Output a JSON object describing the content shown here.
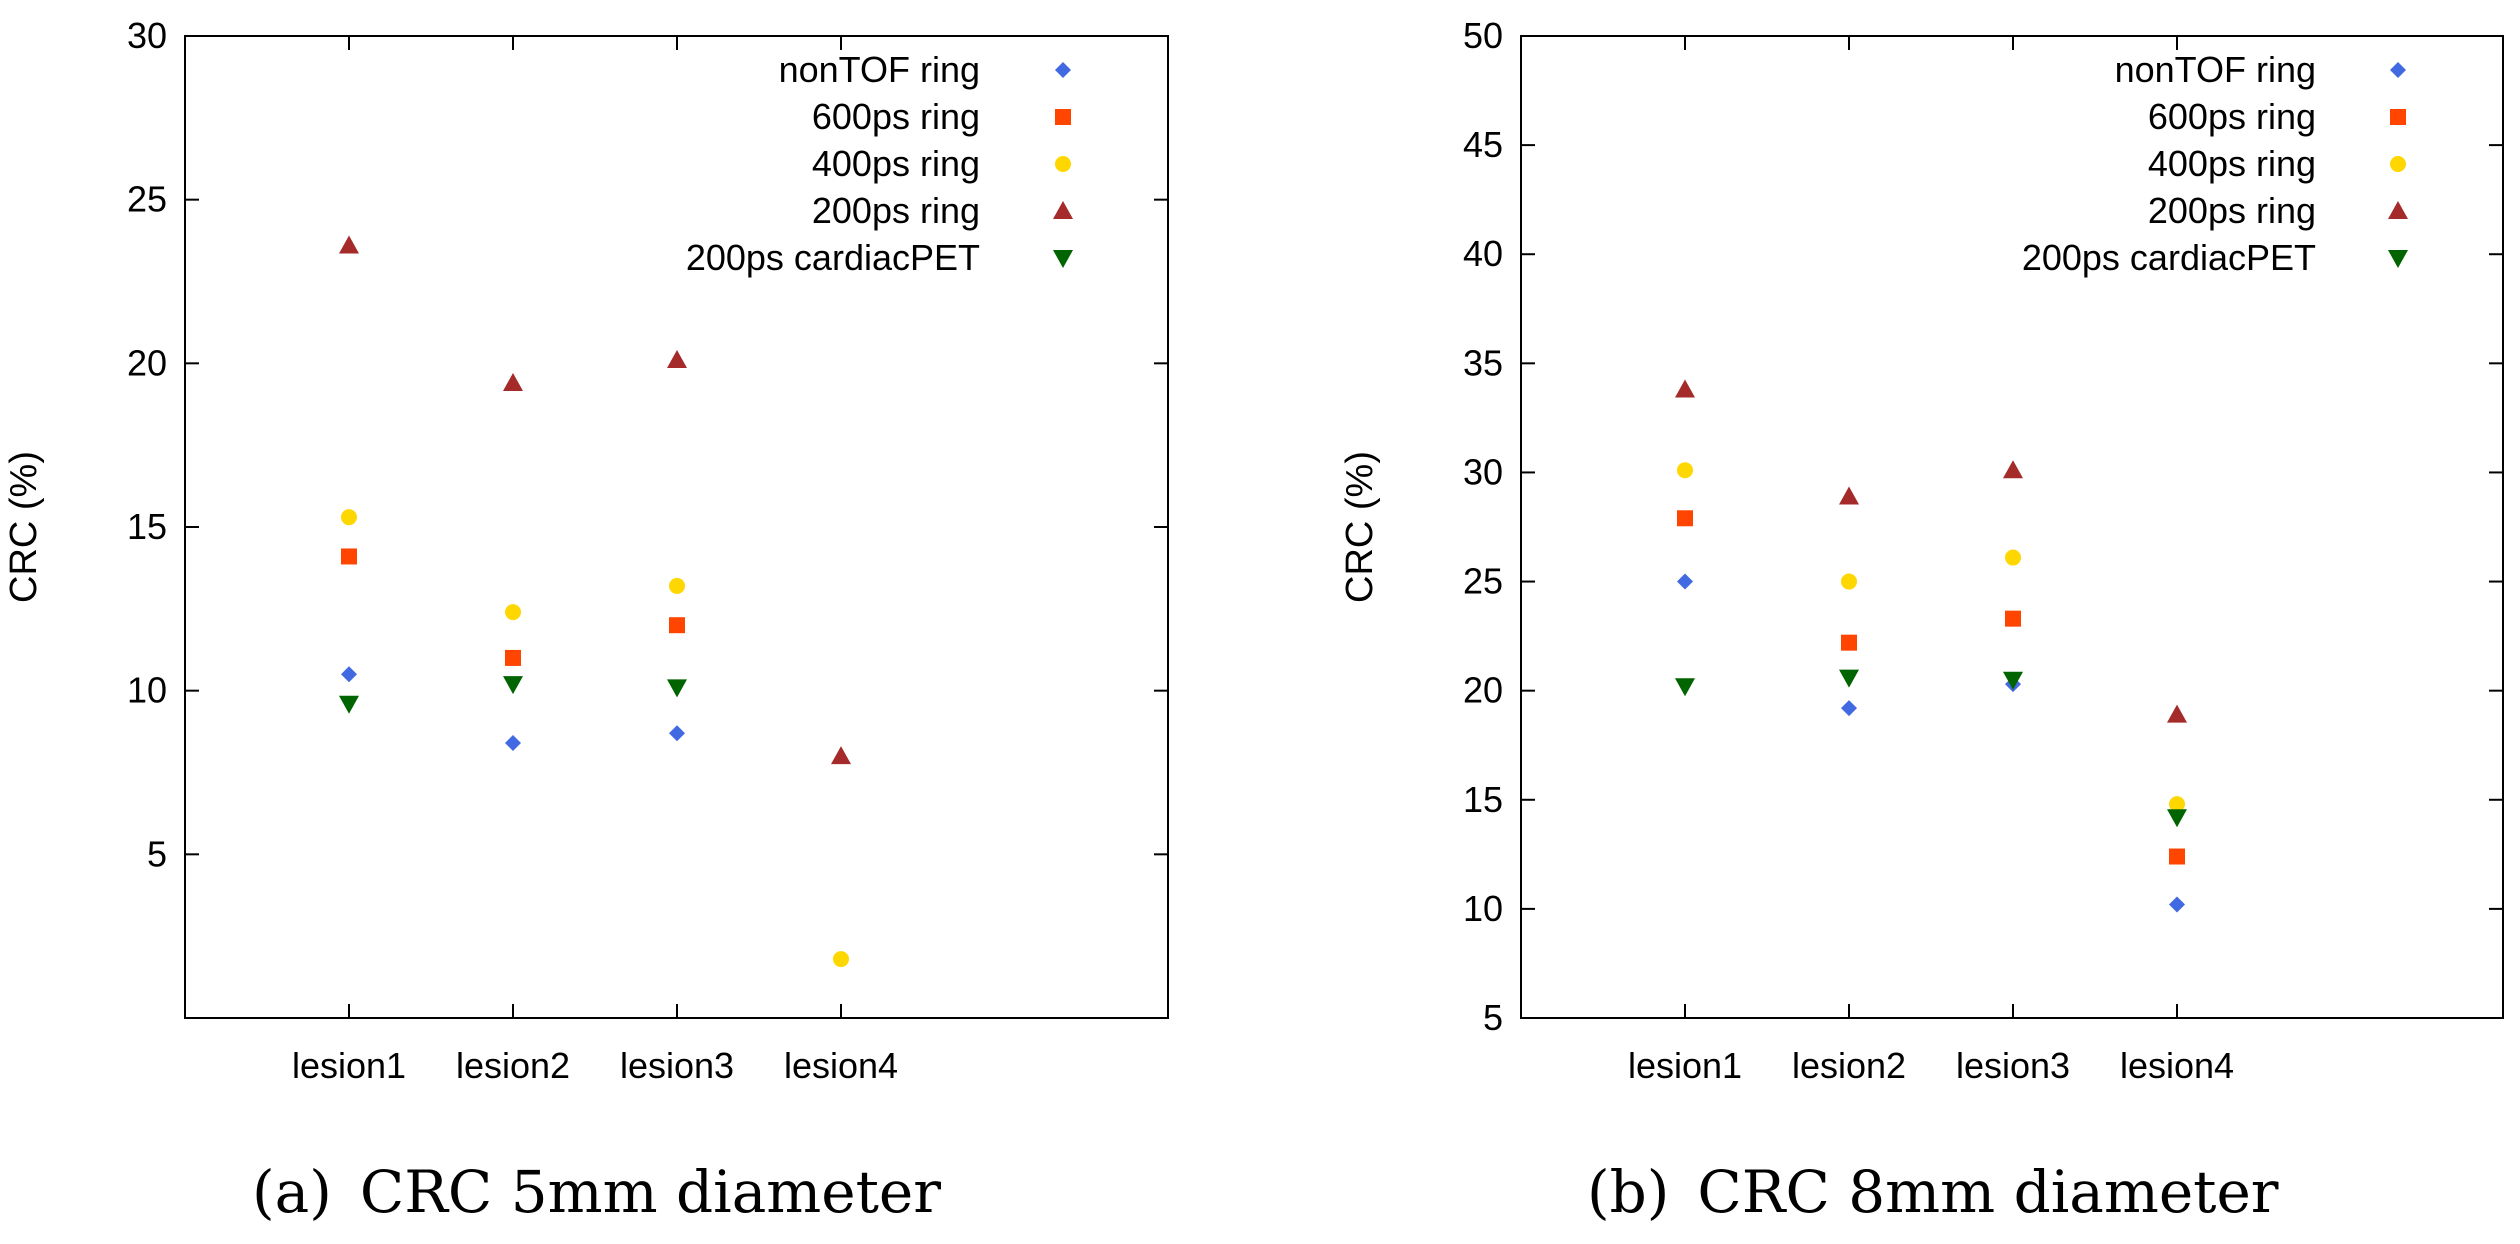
{
  "chart_data": [
    {
      "type": "scatter",
      "caption_label": "(a)",
      "caption_text": "CRC 5mm diameter",
      "ylabel": "CRC (%)",
      "xlabel": "",
      "categories": [
        "lesion1",
        "lesion2",
        "lesion3",
        "lesion4"
      ],
      "ylim": [
        0,
        30
      ],
      "yticks": [
        5,
        10,
        15,
        20,
        25,
        30
      ],
      "grid": false,
      "legend_position": "top-right",
      "series": [
        {
          "name": "nonTOF ring",
          "marker": "diamond",
          "color": "#4169E1",
          "values": [
            10.5,
            8.4,
            8.7,
            null
          ]
        },
        {
          "name": "600ps ring",
          "marker": "square",
          "color": "#FF4500",
          "values": [
            14.1,
            11.0,
            12.0,
            null
          ]
        },
        {
          "name": "400ps ring",
          "marker": "circle",
          "color": "#FFD700",
          "values": [
            15.3,
            12.4,
            13.2,
            1.8
          ]
        },
        {
          "name": "200ps ring",
          "marker": "triangle-up",
          "color": "#A52A2A",
          "values": [
            23.6,
            19.4,
            20.1,
            8.0
          ]
        },
        {
          "name": "200ps cardiacPET",
          "marker": "triangle-down",
          "color": "#006400",
          "values": [
            9.6,
            10.2,
            10.1,
            null
          ]
        }
      ]
    },
    {
      "type": "scatter",
      "caption_label": "(b)",
      "caption_text": "CRC 8mm diameter",
      "ylabel": "CRC (%)",
      "xlabel": "",
      "categories": [
        "lesion1",
        "lesion2",
        "lesion3",
        "lesion4"
      ],
      "ylim": [
        5,
        50
      ],
      "yticks": [
        5,
        10,
        15,
        20,
        25,
        30,
        35,
        40,
        45,
        50
      ],
      "grid": false,
      "legend_position": "top-right",
      "series": [
        {
          "name": "nonTOF ring",
          "marker": "diamond",
          "color": "#4169E1",
          "values": [
            25.0,
            19.2,
            20.3,
            10.2
          ]
        },
        {
          "name": "600ps ring",
          "marker": "square",
          "color": "#FF4500",
          "values": [
            27.9,
            22.2,
            23.3,
            12.4
          ]
        },
        {
          "name": "400ps ring",
          "marker": "circle",
          "color": "#FFD700",
          "values": [
            30.1,
            25.0,
            26.1,
            14.8
          ]
        },
        {
          "name": "200ps ring",
          "marker": "triangle-up",
          "color": "#A52A2A",
          "values": [
            33.8,
            28.9,
            30.1,
            18.9
          ]
        },
        {
          "name": "200ps cardiacPET",
          "marker": "triangle-down",
          "color": "#006400",
          "values": [
            20.2,
            20.6,
            20.5,
            14.2
          ]
        }
      ]
    }
  ]
}
